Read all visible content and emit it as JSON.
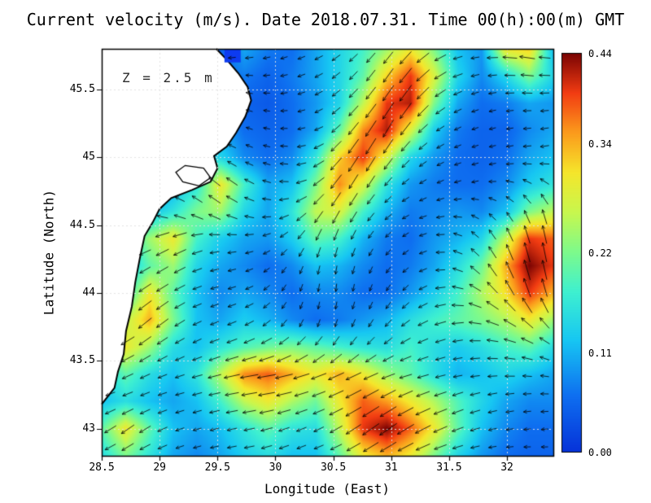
{
  "title": "Current velocity (m/s). Date 2018.07.31. Time 00(h):00(m) GMT",
  "annotation": "Z = 2.5 m",
  "axes": {
    "xlabel": "Longitude (East)",
    "ylabel": "Latitude (North)"
  },
  "chart_data": {
    "type": "heatmap",
    "overlay": "quiver",
    "title": "Current velocity (m/s). Date 2018.07.31. Time 00(h):00(m) GMT",
    "annotation": "Z = 2.5 m",
    "xlabel": "Longitude (East)",
    "ylabel": "Latitude (North)",
    "x_range": [
      28.5,
      32.4
    ],
    "y_range": [
      42.8,
      45.8
    ],
    "x_ticks": [
      "28.5",
      "29",
      "29.5",
      "30",
      "30.5",
      "31",
      "31.5",
      "32"
    ],
    "y_ticks": [
      "45.5",
      "45",
      "44.5",
      "44",
      "43.5",
      "43"
    ],
    "grid_lon": [
      29,
      29.5,
      30,
      30.5,
      31,
      31.5,
      32
    ],
    "grid_lat": [
      43,
      43.5,
      44,
      44.5,
      45,
      45.5
    ],
    "grid_on": true,
    "legend_position": "right-colorbar",
    "colorbar": {
      "min": 0.0,
      "max": 0.44,
      "tick_labels": [
        "0.44",
        "0.34",
        "0.22",
        "0.11",
        "0.00"
      ],
      "tick_values": [
        0.44,
        0.34,
        0.22,
        0.11,
        0.0
      ]
    },
    "colormap": [
      [
        0.0,
        "#0633d9"
      ],
      [
        0.14,
        "#0e6ff0"
      ],
      [
        0.28,
        "#17c7f2"
      ],
      [
        0.4,
        "#3ef0d0"
      ],
      [
        0.5,
        "#7dfa8c"
      ],
      [
        0.6,
        "#c8f74e"
      ],
      [
        0.7,
        "#f5e62b"
      ],
      [
        0.8,
        "#fb9b1c"
      ],
      [
        0.9,
        "#f23c12"
      ],
      [
        1.0,
        "#7a0403"
      ]
    ],
    "land_color": "#ffffff",
    "coast_color": "#000000",
    "arrow_color": "#000000",
    "speed_grid": [
      [
        0.05,
        0.05,
        0.05,
        0.05,
        0.05,
        0.05,
        0.1,
        0.07,
        0.06,
        0.1,
        0.14,
        0.18,
        0.24,
        0.3,
        0.22,
        0.12,
        0.09,
        0.3,
        0.32,
        0.12
      ],
      [
        0.05,
        0.05,
        0.05,
        0.05,
        0.05,
        0.06,
        0.07,
        0.05,
        0.07,
        0.1,
        0.14,
        0.2,
        0.32,
        0.4,
        0.28,
        0.14,
        0.08,
        0.14,
        0.22,
        0.14
      ],
      [
        0.05,
        0.05,
        0.05,
        0.05,
        0.06,
        0.08,
        0.05,
        0.04,
        0.06,
        0.09,
        0.14,
        0.26,
        0.4,
        0.42,
        0.22,
        0.1,
        0.06,
        0.07,
        0.1,
        0.09
      ],
      [
        0.05,
        0.05,
        0.05,
        0.05,
        0.08,
        0.1,
        0.06,
        0.05,
        0.06,
        0.1,
        0.2,
        0.36,
        0.42,
        0.28,
        0.13,
        0.07,
        0.05,
        0.05,
        0.08,
        0.1
      ],
      [
        0.05,
        0.05,
        0.05,
        0.06,
        0.12,
        0.14,
        0.08,
        0.06,
        0.08,
        0.16,
        0.32,
        0.4,
        0.28,
        0.14,
        0.09,
        0.06,
        0.05,
        0.06,
        0.1,
        0.12
      ],
      [
        0.05,
        0.05,
        0.06,
        0.1,
        0.16,
        0.3,
        0.18,
        0.1,
        0.12,
        0.22,
        0.36,
        0.28,
        0.16,
        0.09,
        0.07,
        0.06,
        0.06,
        0.08,
        0.13,
        0.16
      ],
      [
        0.05,
        0.08,
        0.12,
        0.16,
        0.22,
        0.24,
        0.14,
        0.1,
        0.16,
        0.26,
        0.28,
        0.18,
        0.11,
        0.07,
        0.08,
        0.09,
        0.08,
        0.12,
        0.22,
        0.26
      ],
      [
        0.06,
        0.14,
        0.24,
        0.3,
        0.18,
        0.13,
        0.1,
        0.09,
        0.13,
        0.2,
        0.18,
        0.11,
        0.07,
        0.06,
        0.09,
        0.11,
        0.14,
        0.26,
        0.4,
        0.38
      ],
      [
        0.08,
        0.12,
        0.2,
        0.24,
        0.14,
        0.1,
        0.08,
        0.06,
        0.08,
        0.12,
        0.11,
        0.08,
        0.06,
        0.07,
        0.1,
        0.15,
        0.21,
        0.34,
        0.44,
        0.4
      ],
      [
        0.1,
        0.16,
        0.3,
        0.2,
        0.12,
        0.08,
        0.1,
        0.08,
        0.06,
        0.08,
        0.08,
        0.06,
        0.06,
        0.09,
        0.13,
        0.18,
        0.25,
        0.31,
        0.4,
        0.34
      ],
      [
        0.14,
        0.26,
        0.34,
        0.22,
        0.12,
        0.1,
        0.13,
        0.11,
        0.08,
        0.06,
        0.07,
        0.09,
        0.11,
        0.15,
        0.18,
        0.2,
        0.22,
        0.25,
        0.3,
        0.24
      ],
      [
        0.2,
        0.3,
        0.24,
        0.15,
        0.12,
        0.16,
        0.19,
        0.21,
        0.22,
        0.2,
        0.18,
        0.16,
        0.15,
        0.18,
        0.15,
        0.13,
        0.15,
        0.18,
        0.2,
        0.15
      ],
      [
        0.14,
        0.2,
        0.15,
        0.12,
        0.16,
        0.26,
        0.36,
        0.38,
        0.34,
        0.3,
        0.34,
        0.3,
        0.24,
        0.2,
        0.15,
        0.11,
        0.12,
        0.14,
        0.12,
        0.1
      ],
      [
        0.12,
        0.15,
        0.12,
        0.1,
        0.12,
        0.18,
        0.26,
        0.3,
        0.25,
        0.21,
        0.3,
        0.38,
        0.35,
        0.3,
        0.25,
        0.19,
        0.14,
        0.1,
        0.08,
        0.08
      ],
      [
        0.2,
        0.3,
        0.2,
        0.12,
        0.1,
        0.12,
        0.16,
        0.2,
        0.16,
        0.15,
        0.26,
        0.4,
        0.44,
        0.38,
        0.3,
        0.2,
        0.12,
        0.08,
        0.06,
        0.06
      ],
      [
        0.15,
        0.22,
        0.16,
        0.1,
        0.08,
        0.1,
        0.13,
        0.15,
        0.12,
        0.12,
        0.2,
        0.3,
        0.34,
        0.3,
        0.22,
        0.14,
        0.09,
        0.06,
        0.05,
        0.05
      ]
    ],
    "angle_grid_deg": [
      [
        190,
        190,
        190,
        190,
        190,
        185,
        190,
        195,
        200,
        205,
        215,
        225,
        230,
        225,
        210,
        195,
        185,
        175,
        170,
        175
      ],
      [
        185,
        185,
        185,
        185,
        185,
        185,
        175,
        185,
        195,
        205,
        220,
        230,
        235,
        230,
        215,
        200,
        190,
        180,
        175,
        180
      ],
      [
        180,
        180,
        180,
        180,
        175,
        170,
        165,
        175,
        190,
        205,
        220,
        230,
        235,
        235,
        220,
        205,
        195,
        185,
        180,
        185
      ],
      [
        180,
        180,
        180,
        180,
        165,
        160,
        160,
        170,
        185,
        200,
        225,
        235,
        240,
        230,
        215,
        205,
        195,
        190,
        185,
        190
      ],
      [
        180,
        180,
        180,
        170,
        155,
        150,
        155,
        165,
        180,
        205,
        230,
        240,
        235,
        225,
        210,
        200,
        195,
        190,
        185,
        190
      ],
      [
        180,
        180,
        170,
        160,
        145,
        140,
        150,
        165,
        185,
        215,
        235,
        240,
        230,
        215,
        205,
        195,
        190,
        170,
        150,
        140
      ],
      [
        180,
        175,
        165,
        155,
        150,
        150,
        160,
        180,
        205,
        230,
        240,
        235,
        220,
        205,
        195,
        180,
        150,
        130,
        115,
        105
      ],
      [
        180,
        190,
        200,
        205,
        195,
        180,
        185,
        200,
        225,
        245,
        250,
        240,
        225,
        210,
        190,
        160,
        130,
        115,
        105,
        100
      ],
      [
        195,
        205,
        210,
        210,
        200,
        190,
        195,
        215,
        240,
        255,
        260,
        250,
        235,
        215,
        190,
        160,
        130,
        115,
        105,
        100
      ],
      [
        205,
        210,
        215,
        210,
        200,
        195,
        200,
        220,
        245,
        260,
        265,
        255,
        240,
        220,
        195,
        170,
        145,
        125,
        110,
        105
      ],
      [
        210,
        215,
        220,
        215,
        205,
        200,
        205,
        220,
        240,
        255,
        255,
        245,
        230,
        215,
        200,
        185,
        165,
        150,
        135,
        125
      ],
      [
        205,
        210,
        215,
        210,
        205,
        200,
        200,
        205,
        215,
        225,
        230,
        225,
        215,
        205,
        200,
        190,
        180,
        170,
        160,
        150
      ],
      [
        200,
        205,
        205,
        200,
        195,
        195,
        190,
        190,
        195,
        200,
        205,
        205,
        200,
        195,
        195,
        190,
        185,
        180,
        175,
        170
      ],
      [
        200,
        200,
        200,
        195,
        195,
        190,
        190,
        190,
        195,
        200,
        205,
        210,
        210,
        205,
        200,
        200,
        195,
        190,
        185,
        180
      ],
      [
        210,
        215,
        210,
        200,
        195,
        195,
        190,
        195,
        200,
        205,
        210,
        215,
        215,
        210,
        205,
        200,
        195,
        190,
        185,
        185
      ],
      [
        205,
        210,
        205,
        200,
        195,
        190,
        190,
        195,
        200,
        200,
        205,
        210,
        210,
        205,
        200,
        195,
        190,
        185,
        180,
        180
      ]
    ],
    "coastline": [
      [
        29.49,
        45.8
      ],
      [
        29.58,
        45.72
      ],
      [
        29.68,
        45.62
      ],
      [
        29.76,
        45.52
      ],
      [
        29.79,
        45.42
      ],
      [
        29.74,
        45.3
      ],
      [
        29.66,
        45.18
      ],
      [
        29.58,
        45.08
      ],
      [
        29.47,
        45.01
      ],
      [
        29.5,
        44.92
      ],
      [
        29.44,
        44.82
      ],
      [
        29.28,
        44.76
      ],
      [
        29.1,
        44.7
      ],
      [
        29.0,
        44.62
      ],
      [
        28.94,
        44.52
      ],
      [
        28.87,
        44.42
      ],
      [
        28.83,
        44.26
      ],
      [
        28.79,
        44.08
      ],
      [
        28.76,
        43.9
      ],
      [
        28.71,
        43.72
      ],
      [
        28.69,
        43.55
      ],
      [
        28.64,
        43.42
      ],
      [
        28.61,
        43.3
      ],
      [
        28.5,
        43.18
      ]
    ],
    "lagoon": [
      [
        29.22,
        44.94
      ],
      [
        29.38,
        44.92
      ],
      [
        29.44,
        44.85
      ],
      [
        29.34,
        44.79
      ],
      [
        29.2,
        44.82
      ],
      [
        29.14,
        44.89
      ]
    ],
    "mask_patch": {
      "lon": [
        29.56,
        29.7
      ],
      "lat": [
        45.7,
        45.8
      ],
      "color": "#0d3bf0"
    }
  }
}
